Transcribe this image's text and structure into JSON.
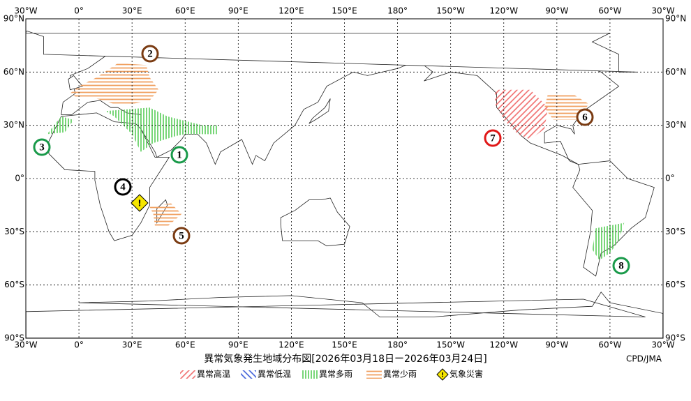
{
  "map": {
    "lon_labels": [
      {
        "value": -30,
        "label": "30°W"
      },
      {
        "value": 0,
        "label": "0°"
      },
      {
        "value": 30,
        "label": "30°E"
      },
      {
        "value": 60,
        "label": "60°E"
      },
      {
        "value": 90,
        "label": "90°E"
      },
      {
        "value": 120,
        "label": "120°E"
      },
      {
        "value": 150,
        "label": "150°E"
      },
      {
        "value": 180,
        "label": "180°"
      },
      {
        "value": 210,
        "label": "150°W"
      },
      {
        "value": 240,
        "label": "120°W"
      },
      {
        "value": 270,
        "label": "90°W"
      },
      {
        "value": 300,
        "label": "60°W"
      },
      {
        "value": 330,
        "label": "30°W"
      }
    ],
    "lat_labels": [
      {
        "value": 90,
        "label": "90°N"
      },
      {
        "value": 60,
        "label": "60°N"
      },
      {
        "value": 30,
        "label": "30°N"
      },
      {
        "value": 0,
        "label": "0°"
      },
      {
        "value": -30,
        "label": "30°S"
      },
      {
        "value": -60,
        "label": "60°S"
      },
      {
        "value": -90,
        "label": "90°S"
      }
    ],
    "markers": [
      {
        "label": "1",
        "color": "#1a9a4a"
      },
      {
        "label": "2",
        "color": "#7a3b12"
      },
      {
        "label": "3",
        "color": "#1a9a4a"
      },
      {
        "label": "4",
        "color": "#000000"
      },
      {
        "label": "5",
        "color": "#7a3b12"
      },
      {
        "label": "6",
        "color": "#7a3b12"
      },
      {
        "label": "7",
        "color": "#e01818"
      },
      {
        "label": "8",
        "color": "#1a9a4a"
      }
    ],
    "warning_label": "!",
    "title": "異常気象発生地域分布図[2026年03月18日ー2026年03月24日]",
    "credit": "CPD/JMA",
    "legend": [
      "異常高温",
      "異常低温",
      "異常多雨",
      "異常少雨",
      "気象災害"
    ]
  }
}
